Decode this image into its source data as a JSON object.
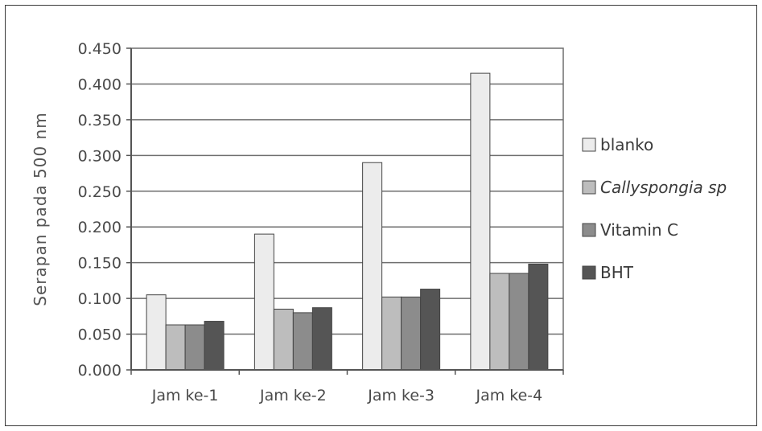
{
  "chart_data": {
    "type": "bar",
    "ylabel": "Serapan pada 500 nm",
    "xlabel": "",
    "title": "",
    "ylim": [
      0,
      0.45
    ],
    "yticks": [
      "0.000",
      "0.050",
      "0.100",
      "0.150",
      "0.200",
      "0.250",
      "0.300",
      "0.350",
      "0.400",
      "0.450"
    ],
    "grid": true,
    "legend_position": "right",
    "categories": [
      "Jam ke-1",
      "Jam ke-2",
      "Jam ke-3",
      "Jam ke-4"
    ],
    "series": [
      {
        "name": "blanko",
        "color": "#ececec",
        "italic": false,
        "values": [
          0.105,
          0.19,
          0.29,
          0.415
        ]
      },
      {
        "name": "Callyspongia sp",
        "color": "#bdbdbd",
        "italic": true,
        "values": [
          0.063,
          0.085,
          0.102,
          0.135
        ]
      },
      {
        "name": "Vitamin C",
        "color": "#8c8c8c",
        "italic": false,
        "values": [
          0.063,
          0.08,
          0.102,
          0.135
        ]
      },
      {
        "name": "BHT",
        "color": "#555555",
        "italic": false,
        "values": [
          0.068,
          0.087,
          0.113,
          0.148
        ]
      }
    ]
  }
}
